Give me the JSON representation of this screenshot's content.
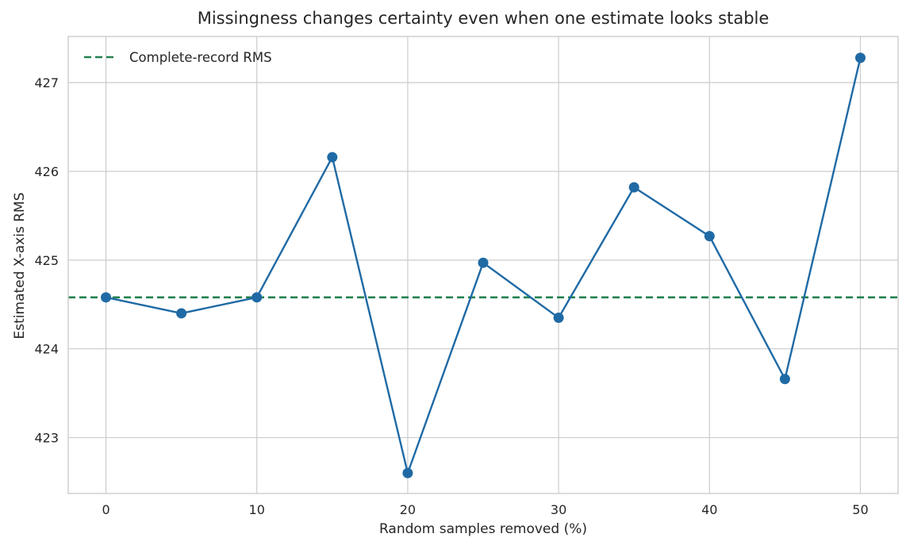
{
  "chart_data": {
    "type": "line",
    "title": "Missingness changes certainty even when one estimate looks stable",
    "xlabel": "Random samples removed (%)",
    "ylabel": "Estimated X-axis RMS",
    "xlim": [
      -2.5,
      52.5
    ],
    "ylim": [
      422.37,
      427.52
    ],
    "x_ticks": [
      0,
      10,
      20,
      30,
      40,
      50
    ],
    "y_ticks": [
      423,
      424,
      425,
      426,
      427
    ],
    "grid": true,
    "legend_position": "top-left",
    "series": [
      {
        "type": "line-markers",
        "color": "#1f6aa5",
        "x": [
          0,
          5,
          10,
          15,
          20,
          25,
          30,
          35,
          40,
          45,
          50
        ],
        "y": [
          424.58,
          424.4,
          424.58,
          426.16,
          422.6,
          424.97,
          424.35,
          425.82,
          425.27,
          423.66,
          427.28
        ]
      }
    ],
    "reference_lines": [
      {
        "name": "Complete-record RMS",
        "y": 424.58,
        "style": "dashed",
        "color": "#238150"
      }
    ]
  }
}
